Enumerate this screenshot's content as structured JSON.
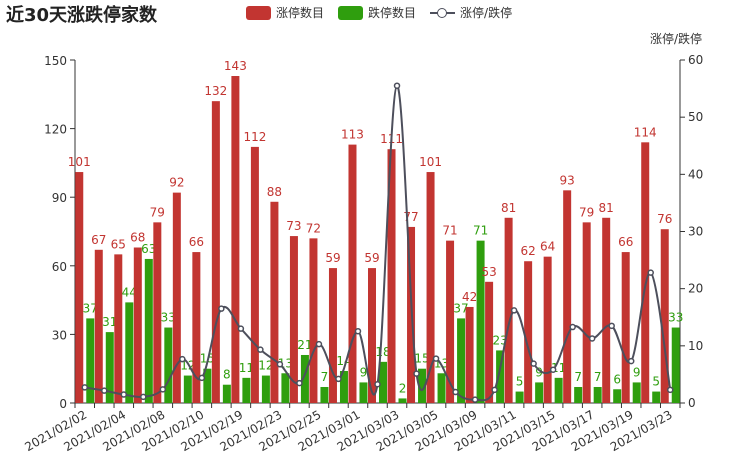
{
  "chart_data": {
    "type": "bar",
    "title": "近30天涨跌停家数",
    "categories": [
      "2021/02/02",
      "2021/02/03",
      "2021/02/04",
      "2021/02/05",
      "2021/02/08",
      "2021/02/09",
      "2021/02/10",
      "2021/02/18",
      "2021/02/19",
      "2021/02/22",
      "2021/02/23",
      "2021/02/24",
      "2021/02/25",
      "2021/02/26",
      "2021/03/01",
      "2021/03/02",
      "2021/03/03",
      "2021/03/04",
      "2021/03/05",
      "2021/03/08",
      "2021/03/09",
      "2021/03/10",
      "2021/03/11",
      "2021/03/12",
      "2021/03/15",
      "2021/03/16",
      "2021/03/17",
      "2021/03/18",
      "2021/03/19",
      "2021/03/22",
      "2021/03/23"
    ],
    "tick_labels": [
      "2021/02/02",
      "2021/02/04",
      "2021/02/08",
      "2021/02/10",
      "2021/02/19",
      "2021/02/23",
      "2021/02/25",
      "2021/03/01",
      "2021/03/03",
      "2021/03/05",
      "2021/03/09",
      "2021/03/11",
      "2021/03/15",
      "2021/03/17",
      "2021/03/19",
      "2021/03/23"
    ],
    "series": [
      {
        "name": "涨停数目",
        "type": "bar",
        "color": "#c23531",
        "values": [
          101,
          67,
          65,
          68,
          79,
          92,
          66,
          132,
          143,
          112,
          88,
          73,
          72,
          59,
          113,
          59,
          111,
          77,
          101,
          71,
          42,
          53,
          81,
          62,
          64,
          93,
          79,
          81,
          66,
          114,
          76
        ]
      },
      {
        "name": "跌停数目",
        "type": "bar",
        "color": "#2f9e0e",
        "values": [
          37,
          31,
          44,
          63,
          33,
          12,
          15,
          8,
          11,
          12,
          13,
          21,
          7,
          14,
          9,
          18,
          2,
          15,
          13,
          37,
          71,
          23,
          5,
          9,
          11,
          7,
          7,
          6,
          9,
          5,
          33
        ]
      },
      {
        "name": "涨停/跌停",
        "type": "line",
        "axis": "right",
        "color": "#4d4f5c",
        "values": [
          2.73,
          2.16,
          1.48,
          1.08,
          2.39,
          7.67,
          4.4,
          16.5,
          13.0,
          9.33,
          6.77,
          3.48,
          10.29,
          4.21,
          12.56,
          3.28,
          55.5,
          5.13,
          7.77,
          1.92,
          0.59,
          2.3,
          16.2,
          6.89,
          5.82,
          13.29,
          11.29,
          13.5,
          7.33,
          22.8,
          2.3
        ]
      }
    ],
    "y_left": {
      "min": 0,
      "max": 150,
      "ticks": [
        0,
        30,
        60,
        90,
        120,
        150
      ]
    },
    "y_right": {
      "name": "涨停/跌停",
      "min": 0,
      "max": 60,
      "ticks": [
        0,
        10,
        20,
        30,
        40,
        50,
        60
      ]
    },
    "legend_position": "top-center",
    "grid": false
  }
}
